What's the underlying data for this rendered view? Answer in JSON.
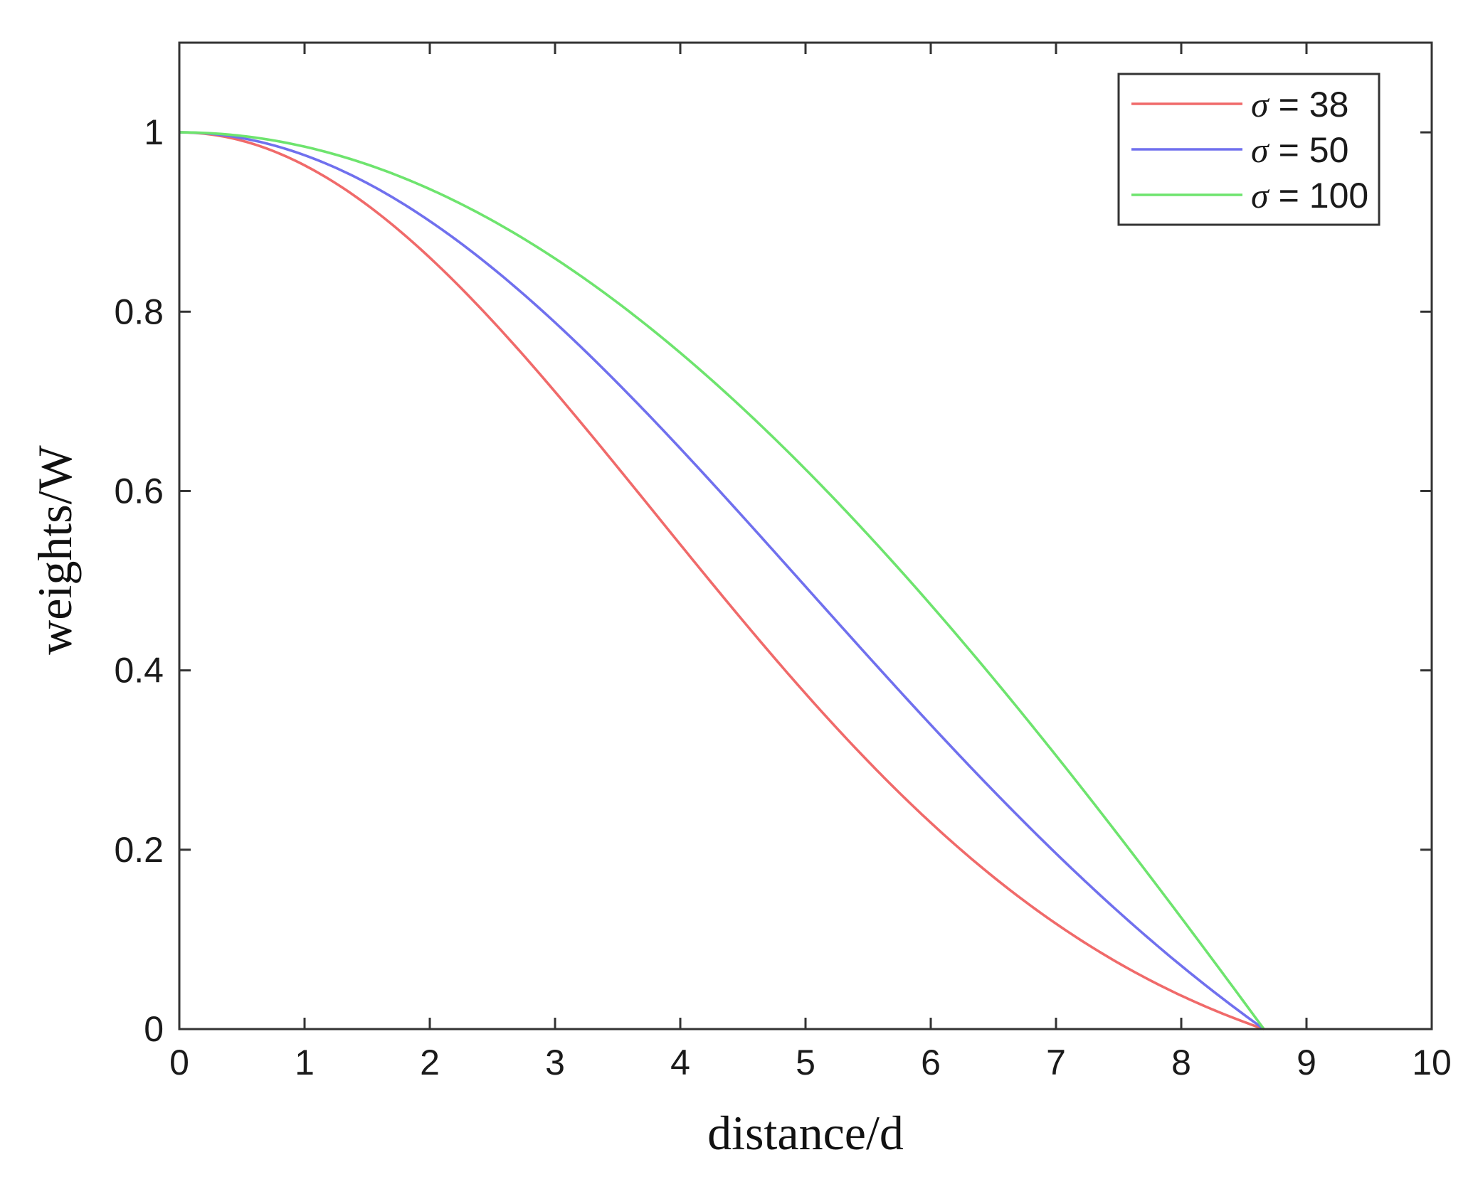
{
  "chart_data": {
    "type": "line",
    "title": "",
    "xlabel": "distance/d",
    "ylabel": "weights/W",
    "xlim": [
      0,
      10
    ],
    "ylim": [
      0,
      1.1
    ],
    "xticks": [
      0,
      1,
      2,
      3,
      4,
      5,
      6,
      7,
      8,
      9,
      10
    ],
    "yticks": [
      0,
      0.2,
      0.4,
      0.6,
      0.8,
      1
    ],
    "ytick_labels": [
      "0",
      "0.2",
      "0.4",
      "0.6",
      "0.8",
      "1"
    ],
    "grid": false,
    "legend_position": "top-right",
    "x_max_support": 8.66,
    "series": [
      {
        "name": "σ = 38",
        "symbol": "σ",
        "value_label": "= 38",
        "sigma": 38,
        "color": "#f06a6a"
      },
      {
        "name": "σ = 50",
        "symbol": "σ",
        "value_label": "= 50",
        "sigma": 50,
        "color": "#7070ee"
      },
      {
        "name": "σ = 100",
        "symbol": "σ",
        "value_label": "= 100",
        "sigma": 100,
        "color": "#6ee46e"
      }
    ]
  }
}
